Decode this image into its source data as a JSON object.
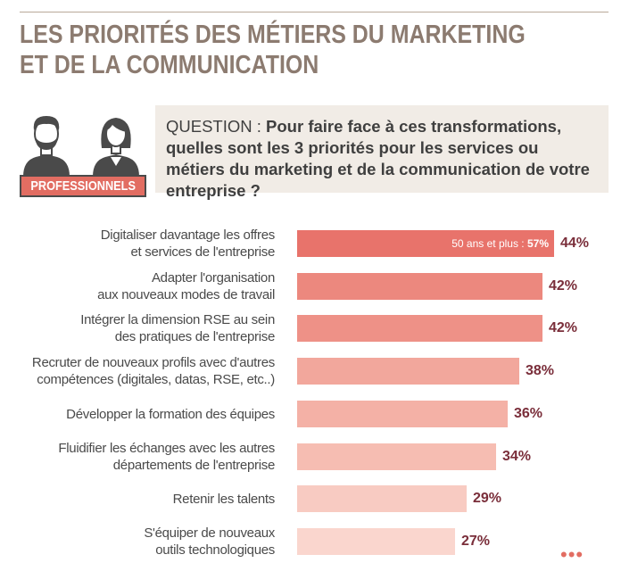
{
  "page": {
    "title_line1": "LES PRIORITÉS DES MÉTIERS DU MARKETING",
    "title_line2": "ET DE LA COMMUNICATION",
    "badge": "PROFESSIONNELS",
    "question_label": "QUESTION : ",
    "question_text": "Pour faire face à ces transformations, quelles sont les 3 priorités pour les services ou métiers du marketing et de la communication de votre entreprise ?",
    "more_dots": "•••",
    "icons": [
      "man-icon",
      "woman-icon"
    ]
  },
  "chart_data": {
    "type": "bar",
    "orientation": "horizontal",
    "categories": [
      "Digitaliser davantage les offres et services de l'entreprise",
      "Adapter l'organisation aux nouveaux modes de travail",
      "Intégrer la dimension RSE au sein des pratiques de l'entreprise",
      "Recruter de nouveaux profils avec d'autres compétences (digitales, datas, RSE, etc..)",
      "Développer la formation des équipes",
      "Fluidifier les échanges avec les autres départements de l'entreprise",
      "Retenir les talents",
      "S'équiper de nouveaux outils technologiques"
    ],
    "label_lines": [
      [
        "Digitaliser davantage les offres",
        "et services de l'entreprise"
      ],
      [
        "Adapter l'organisation",
        "aux nouveaux modes de travail"
      ],
      [
        "Intégrer la dimension RSE au sein",
        "des pratiques de l'entreprise"
      ],
      [
        "Recruter de nouveaux profils avec d'autres",
        "compétences (digitales, datas, RSE, etc..)"
      ],
      [
        "Développer la formation des équipes"
      ],
      [
        "Fluidifier les échanges avec les autres",
        "départements de l'entreprise"
      ],
      [
        "Retenir les talents"
      ],
      [
        "S'équiper de nouveaux",
        "outils technologiques"
      ]
    ],
    "values": [
      44,
      42,
      42,
      38,
      36,
      34,
      29,
      27
    ],
    "value_labels": [
      "44%",
      "42%",
      "42%",
      "38%",
      "36%",
      "34%",
      "29%",
      "27%"
    ],
    "annotation": {
      "bar_index": 0,
      "label": "50 ans et plus : ",
      "value": "57%"
    },
    "colors": [
      "#e8736b",
      "#ec887e",
      "#ee9187",
      "#f2a79c",
      "#f4b1a6",
      "#f6bdb2",
      "#f8cbc2",
      "#fad6ce"
    ],
    "value_color": "#7a2e3a"
  }
}
